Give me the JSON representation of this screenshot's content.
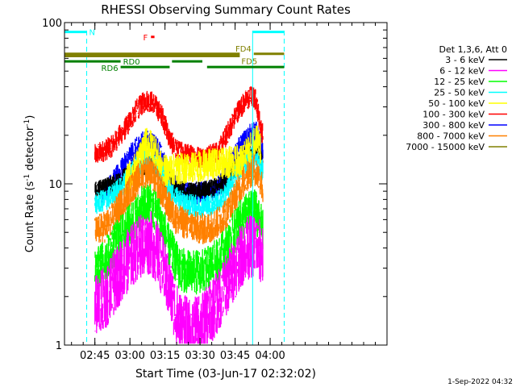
{
  "chart_data": {
    "type": "line",
    "title": "RHESSI Observing Summary Count Rates",
    "xlabel": "Start Time (03-Jun-17 02:32:02)",
    "ylabel": "Count Rate (s",
    "ylabel_sup": "-1",
    "ylabel_tail": " detector",
    "ylabel_end": ")",
    "y_scale": "log",
    "ylim": [
      1,
      100
    ],
    "xlim_min": [
      152,
      290
    ],
    "y_ticks": [
      {
        "v": 1,
        "label": "1"
      },
      {
        "v": 10,
        "label": "10"
      },
      {
        "v": 100,
        "label": "100"
      }
    ],
    "x_ticks": [
      {
        "v": 165,
        "label": "02:45"
      },
      {
        "v": 180,
        "label": "03:00"
      },
      {
        "v": 195,
        "label": "03:15"
      },
      {
        "v": 210,
        "label": "03:30"
      },
      {
        "v": 225,
        "label": "03:45"
      },
      {
        "v": 240,
        "label": "04:00"
      }
    ],
    "x_minor_step": 5,
    "legend": {
      "placement": "right",
      "header": "Det 1,3,6, Att 0",
      "entries": [
        {
          "label": "3 - 6 keV",
          "color": "#000000"
        },
        {
          "label": "6 - 12 keV",
          "color": "#ff00ff"
        },
        {
          "label": "12 - 25 keV",
          "color": "#00ff00"
        },
        {
          "label": "25 - 50 keV",
          "color": "#00ffff"
        },
        {
          "label": "50 - 100 keV",
          "color": "#ffff00"
        },
        {
          "label": "100 - 300 keV",
          "color": "#ff0000"
        },
        {
          "label": "300 - 800 keV",
          "color": "#0000ff"
        },
        {
          "label": "800 - 7000 keV",
          "color": "#ff8000"
        },
        {
          "label": "7000 - 15000 keV",
          "color": "#808000"
        }
      ]
    },
    "data_window_min": [
      165,
      243
    ],
    "series": [
      {
        "color": "#ff0000",
        "noise": 0.07,
        "points": [
          [
            165,
            15
          ],
          [
            172,
            17
          ],
          [
            178,
            22
          ],
          [
            183,
            29
          ],
          [
            187,
            33
          ],
          [
            190,
            32
          ],
          [
            194,
            26
          ],
          [
            197,
            19
          ],
          [
            200,
            16
          ],
          [
            206,
            15
          ],
          [
            212,
            14.5
          ],
          [
            218,
            16
          ],
          [
            222,
            21
          ],
          [
            226,
            28
          ],
          [
            229,
            32
          ],
          [
            232,
            35
          ],
          [
            234,
            33
          ],
          [
            236,
            22
          ],
          [
            237,
            20
          ]
        ]
      },
      {
        "color": "#0000ff",
        "noise": 0.07,
        "points": [
          [
            168,
            8.5
          ],
          [
            172,
            10
          ],
          [
            176,
            12
          ],
          [
            180,
            15
          ],
          [
            185,
            18
          ],
          [
            189,
            18.5
          ],
          [
            193,
            15.5
          ],
          [
            197,
            11
          ],
          [
            202,
            9
          ],
          [
            208,
            8.7
          ],
          [
            214,
            8.9
          ],
          [
            219,
            10
          ],
          [
            223,
            13
          ],
          [
            227,
            17
          ],
          [
            231,
            20
          ],
          [
            234,
            21
          ],
          [
            236,
            17
          ],
          [
            237,
            15
          ]
        ]
      },
      {
        "color": "#000000",
        "noise": 0.06,
        "points": [
          [
            165,
            9
          ],
          [
            170,
            9.5
          ],
          [
            176,
            10.5
          ],
          [
            181,
            12
          ],
          [
            186,
            13
          ],
          [
            190,
            13
          ],
          [
            194,
            11
          ],
          [
            198,
            9.5
          ],
          [
            204,
            9
          ],
          [
            210,
            9
          ],
          [
            216,
            9.5
          ],
          [
            220,
            10
          ],
          [
            224,
            12
          ],
          [
            228,
            14
          ],
          [
            232,
            16
          ],
          [
            235,
            16
          ],
          [
            237,
            13
          ]
        ]
      },
      {
        "color": "#00ffff",
        "noise": 0.07,
        "points": [
          [
            165,
            7.5
          ],
          [
            170,
            8
          ],
          [
            176,
            9.5
          ],
          [
            181,
            12
          ],
          [
            186,
            14
          ],
          [
            190,
            14
          ],
          [
            194,
            11.5
          ],
          [
            198,
            8.5
          ],
          [
            204,
            7.5
          ],
          [
            210,
            7.2
          ],
          [
            216,
            7.5
          ],
          [
            220,
            8.2
          ],
          [
            224,
            10.5
          ],
          [
            228,
            13
          ],
          [
            232,
            14.5
          ],
          [
            235,
            13.5
          ],
          [
            237,
            12
          ]
        ]
      },
      {
        "color": "#ffff00",
        "noise": 0.1,
        "points": [
          [
            178,
            10
          ],
          [
            183,
            13
          ],
          [
            187,
            18
          ],
          [
            190,
            17
          ],
          [
            194,
            12
          ],
          [
            228,
            14
          ],
          [
            232,
            17
          ],
          [
            234,
            20
          ],
          [
            236,
            16
          ]
        ]
      },
      {
        "color": "#ff8000",
        "noise": 0.1,
        "points": [
          [
            165,
            5
          ],
          [
            170,
            5.5
          ],
          [
            175,
            7
          ],
          [
            180,
            9
          ],
          [
            185,
            11.5
          ],
          [
            188,
            12
          ],
          [
            192,
            10
          ],
          [
            196,
            7.5
          ],
          [
            200,
            6
          ],
          [
            206,
            5.5
          ],
          [
            212,
            5.2
          ],
          [
            218,
            5.8
          ],
          [
            222,
            6.8
          ],
          [
            226,
            9
          ],
          [
            230,
            11
          ],
          [
            233,
            12.5
          ],
          [
            236,
            10.5
          ],
          [
            237,
            9
          ]
        ]
      },
      {
        "color": "#00ff00",
        "noise": 0.14,
        "points": [
          [
            165,
            2.8
          ],
          [
            170,
            3.5
          ],
          [
            175,
            4.5
          ],
          [
            180,
            5.5
          ],
          [
            185,
            7
          ],
          [
            189,
            7.5
          ],
          [
            193,
            6
          ],
          [
            197,
            4
          ],
          [
            201,
            3
          ],
          [
            206,
            2.8
          ],
          [
            212,
            2.9
          ],
          [
            218,
            3.4
          ],
          [
            222,
            4.2
          ],
          [
            226,
            5.5
          ],
          [
            230,
            6.5
          ],
          [
            234,
            6.8
          ],
          [
            237,
            5
          ]
        ]
      },
      {
        "color": "#ff00ff",
        "noise": 0.2,
        "points": [
          [
            165,
            1.7
          ],
          [
            170,
            2
          ],
          [
            175,
            2.7
          ],
          [
            180,
            3.5
          ],
          [
            185,
            4.2
          ],
          [
            189,
            4.3
          ],
          [
            193,
            3.4
          ],
          [
            197,
            2.2
          ],
          [
            201,
            1.4
          ],
          [
            206,
            1.2
          ],
          [
            212,
            1.4
          ],
          [
            218,
            1.9
          ],
          [
            222,
            2.5
          ],
          [
            226,
            3.3
          ],
          [
            230,
            4
          ],
          [
            234,
            4.2
          ],
          [
            237,
            3.5
          ]
        ]
      }
    ],
    "flags": [
      {
        "label": "N",
        "color": "#00ffff",
        "label_pos": "right-of-first",
        "segments": [
          [
            152,
            161.5
          ],
          [
            232.5,
            246
          ]
        ],
        "rate": 87.5
      },
      {
        "label": "F",
        "color": "#ff0000",
        "label_pos": "left-of-first",
        "segments": [
          [
            189,
            190.5
          ]
        ],
        "rate": 81.5
      },
      {
        "label": "FD4",
        "color": "#808000",
        "label_pos": "left-of-second",
        "segments": [
          [
            152,
            227
          ],
          [
            233,
            246
          ]
        ],
        "rate": 64
      },
      {
        "label": "FD5",
        "color": "#808000",
        "label_pos": "below-first-end",
        "segments": [
          [
            152,
            227
          ]
        ],
        "rate": 62
      },
      {
        "label": "RD0",
        "color": "#008000",
        "label_pos": "right-of-first",
        "segments": [
          [
            152,
            176
          ],
          [
            198,
            211
          ]
        ],
        "rate": 57.5
      },
      {
        "label": "RD6",
        "color": "#008000",
        "label_pos": "left-of-second",
        "segments": [
          [
            176,
            197
          ],
          [
            213,
            246
          ]
        ],
        "rate": 53
      }
    ],
    "saa_markers_min": [
      {
        "v": 152,
        "color": "#00ffff",
        "style": "solid"
      },
      {
        "v": 161.5,
        "color": "#00ffff",
        "style": "dashed"
      },
      {
        "v": 232.5,
        "color": "#00ffff",
        "style": "solid"
      },
      {
        "v": 246,
        "color": "#00ffff",
        "style": "dashed"
      }
    ]
  },
  "footer": {
    "date_stamp": "1-Sep-2022 04:32"
  }
}
